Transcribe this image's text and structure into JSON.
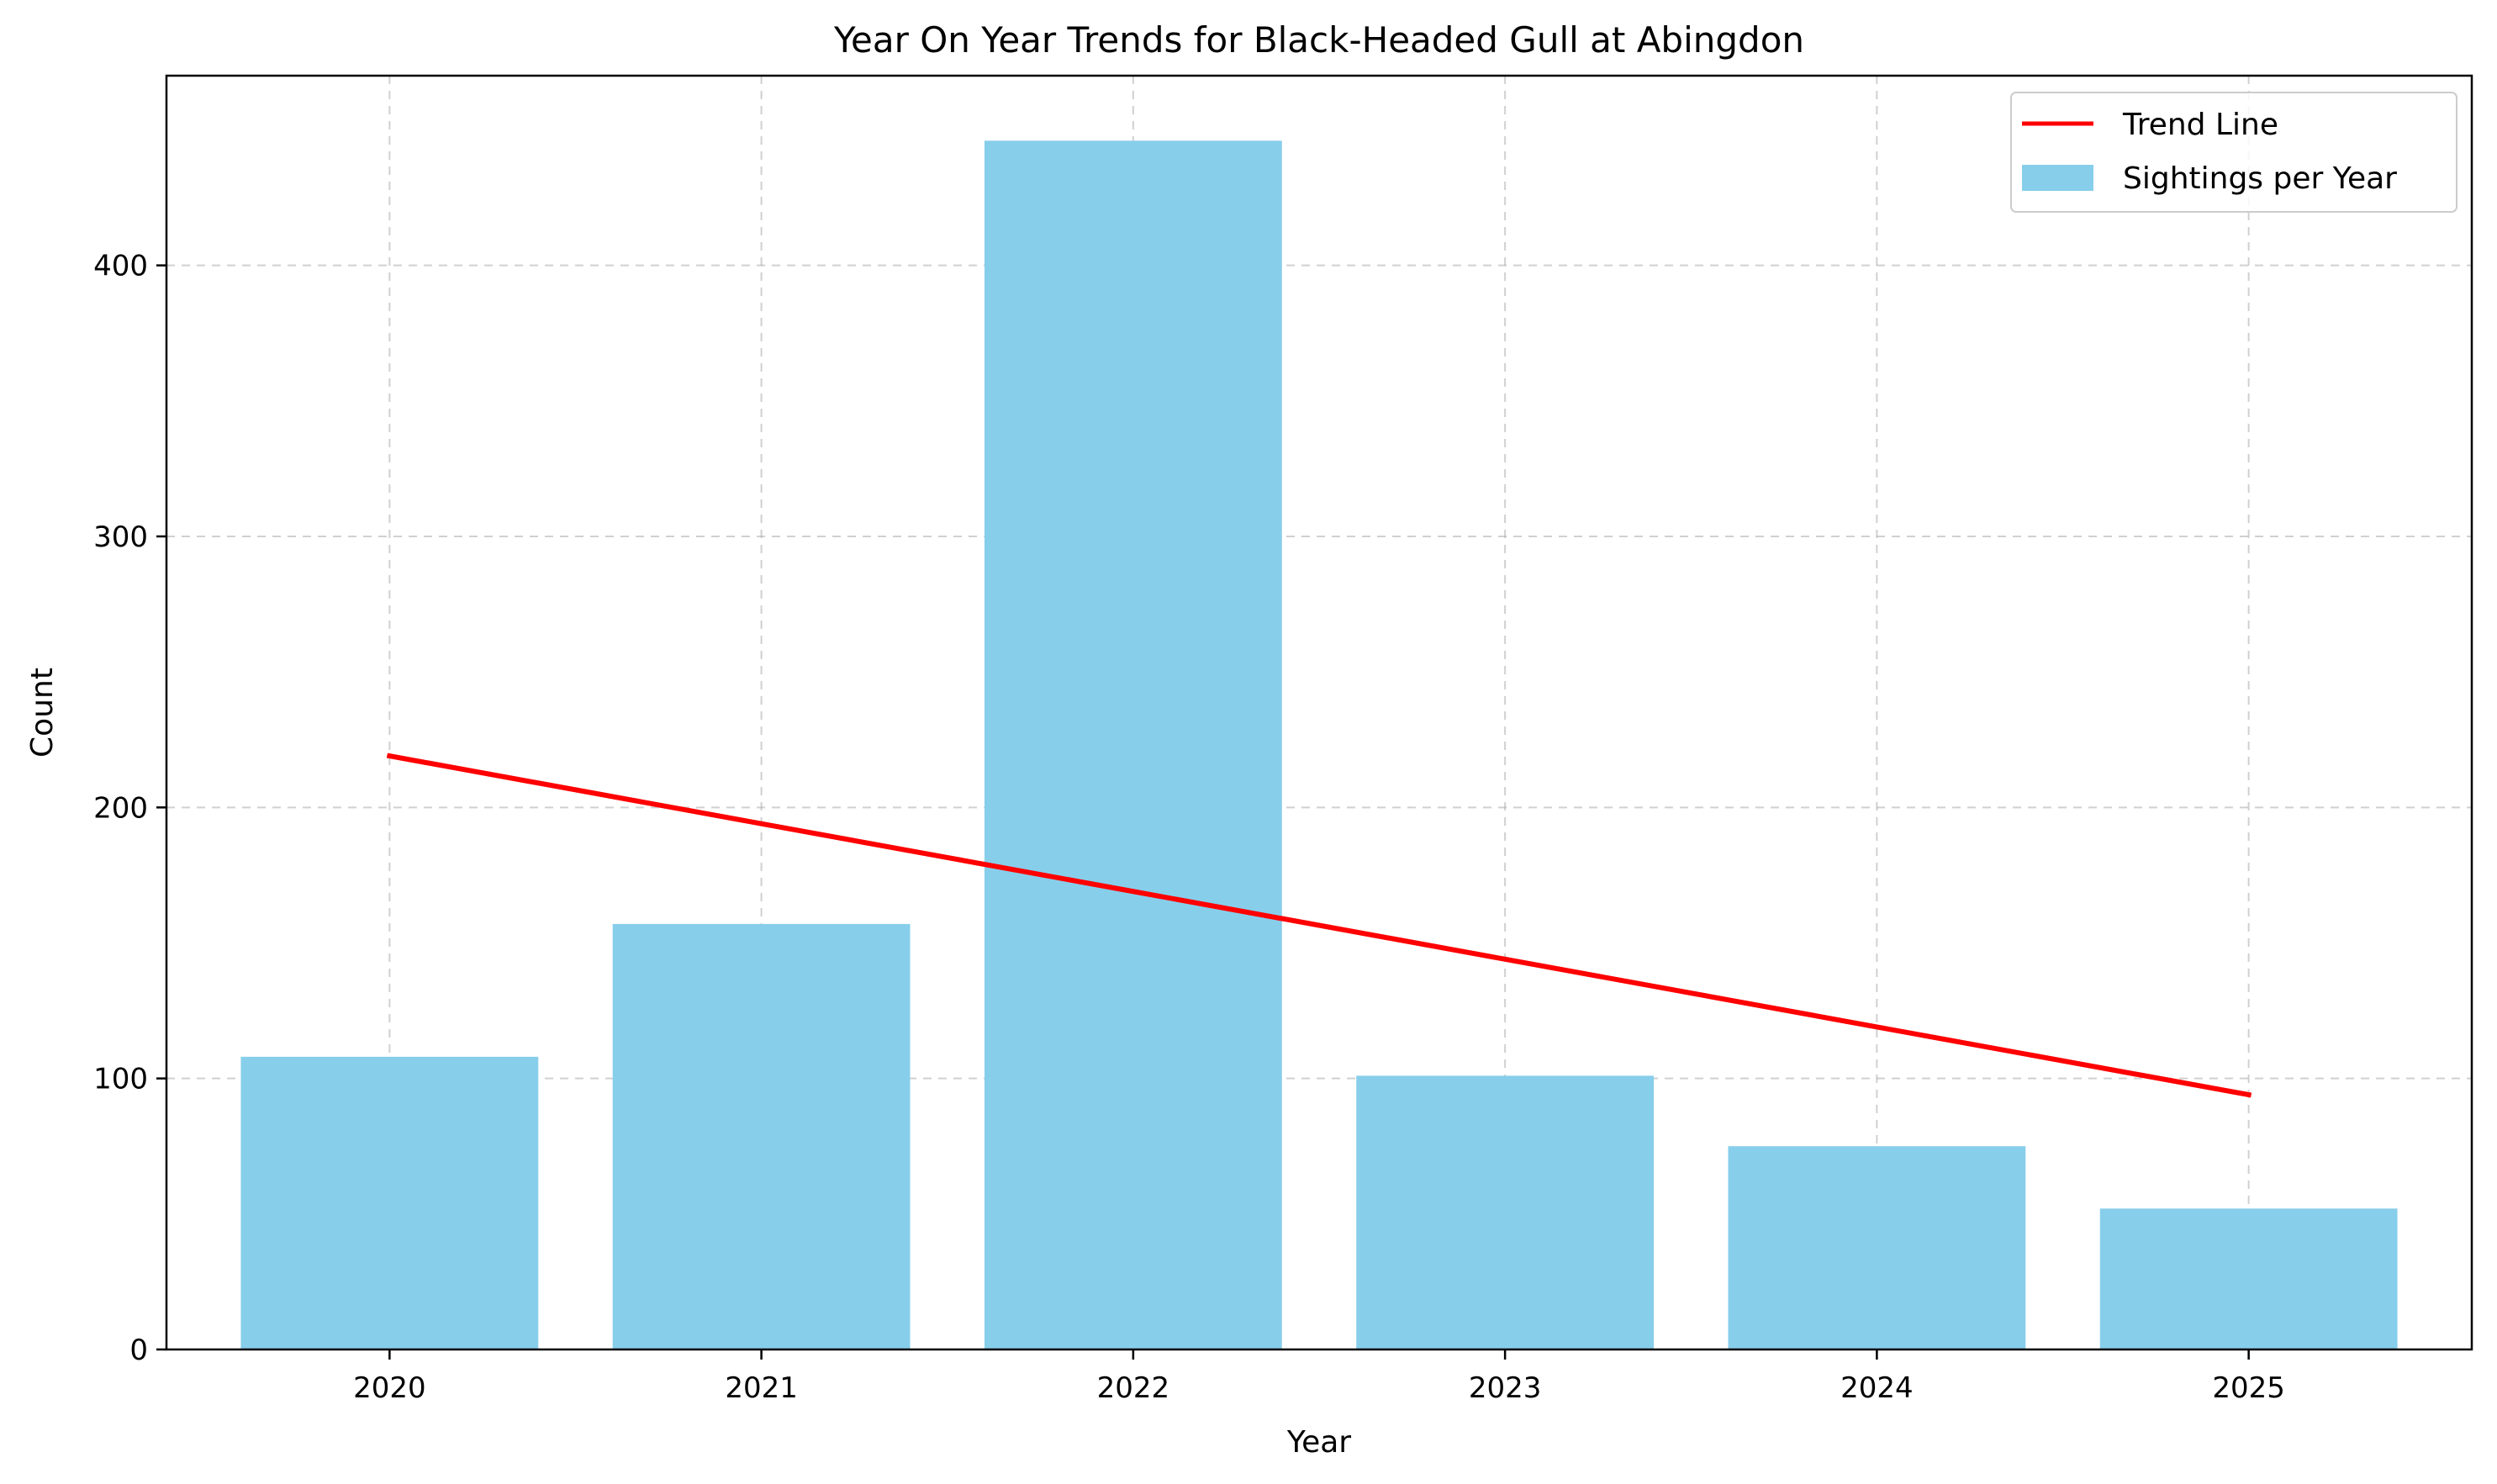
{
  "chart_data": {
    "type": "bar",
    "title": "Year On Year Trends for Black-Headed Gull at Abingdon",
    "xlabel": "Year",
    "ylabel": "Count",
    "categories": [
      "2020",
      "2021",
      "2022",
      "2023",
      "2024",
      "2025"
    ],
    "series": [
      {
        "name": "Sightings per Year",
        "type": "bar",
        "color": "#87CEEB",
        "values": [
          108,
          157,
          446,
          101,
          75,
          52
        ]
      },
      {
        "name": "Trend Line",
        "type": "line",
        "color": "#FF0000",
        "values": [
          219,
          194,
          169,
          144,
          119,
          94
        ]
      }
    ],
    "ylim": [
      0,
      470
    ],
    "yticks": [
      0,
      100,
      200,
      300,
      400
    ],
    "grid": true,
    "legend_position": "top-right"
  }
}
